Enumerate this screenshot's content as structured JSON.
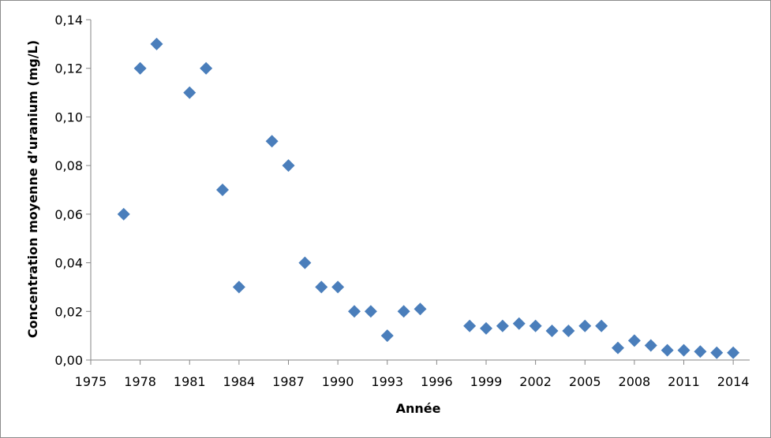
{
  "chart_data": {
    "type": "scatter",
    "xlabel": "Année",
    "ylabel": "Concentration moyenne d’uranium  (mg/L)",
    "xlim": [
      1975,
      2015
    ],
    "ylim": [
      0,
      0.14
    ],
    "x_ticks": [
      1975,
      1978,
      1981,
      1984,
      1987,
      1990,
      1993,
      1996,
      1999,
      2002,
      2005,
      2008,
      2011,
      2014
    ],
    "y_ticks": [
      0,
      0.02,
      0.04,
      0.06,
      0.08,
      0.1,
      0.12,
      0.14
    ],
    "y_tick_labels": [
      "0,00",
      "0,02",
      "0,04",
      "0,06",
      "0,08",
      "0,10",
      "0,12",
      "0,14"
    ],
    "grid": false,
    "legend": "none",
    "marker": "diamond",
    "marker_color": "#4a7ebb",
    "points": [
      {
        "x": 1977,
        "y": 0.06
      },
      {
        "x": 1978,
        "y": 0.12
      },
      {
        "x": 1979,
        "y": 0.13
      },
      {
        "x": 1981,
        "y": 0.11
      },
      {
        "x": 1982,
        "y": 0.12
      },
      {
        "x": 1983,
        "y": 0.07
      },
      {
        "x": 1984,
        "y": 0.03
      },
      {
        "x": 1986,
        "y": 0.09
      },
      {
        "x": 1987,
        "y": 0.08
      },
      {
        "x": 1988,
        "y": 0.04
      },
      {
        "x": 1989,
        "y": 0.03
      },
      {
        "x": 1990,
        "y": 0.03
      },
      {
        "x": 1991,
        "y": 0.02
      },
      {
        "x": 1992,
        "y": 0.02
      },
      {
        "x": 1993,
        "y": 0.01
      },
      {
        "x": 1994,
        "y": 0.02
      },
      {
        "x": 1995,
        "y": 0.021
      },
      {
        "x": 1998,
        "y": 0.014
      },
      {
        "x": 1999,
        "y": 0.013
      },
      {
        "x": 2000,
        "y": 0.014
      },
      {
        "x": 2001,
        "y": 0.015
      },
      {
        "x": 2002,
        "y": 0.014
      },
      {
        "x": 2003,
        "y": 0.012
      },
      {
        "x": 2004,
        "y": 0.012
      },
      {
        "x": 2005,
        "y": 0.014
      },
      {
        "x": 2006,
        "y": 0.014
      },
      {
        "x": 2007,
        "y": 0.005
      },
      {
        "x": 2008,
        "y": 0.008
      },
      {
        "x": 2009,
        "y": 0.006
      },
      {
        "x": 2010,
        "y": 0.004
      },
      {
        "x": 2011,
        "y": 0.004
      },
      {
        "x": 2012,
        "y": 0.0035
      },
      {
        "x": 2013,
        "y": 0.003
      },
      {
        "x": 2014,
        "y": 0.003
      }
    ]
  }
}
